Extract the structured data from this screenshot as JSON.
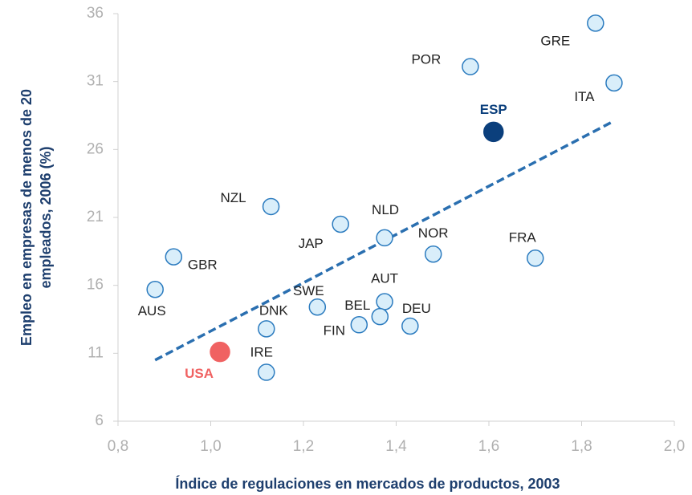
{
  "chart_data": {
    "type": "scatter",
    "x_label": "Índice de regulaciones en mercados de productos, 2003",
    "y_label": [
      "Empleo en empresas de menos de 20",
      "empleados, 2006 (%)"
    ],
    "xlim": [
      0.8,
      2.0
    ],
    "ylim": [
      6,
      36
    ],
    "xticks": [
      {
        "value": 0.8,
        "label": "0,8"
      },
      {
        "value": 1.0,
        "label": "1,0"
      },
      {
        "value": 1.2,
        "label": "1,2"
      },
      {
        "value": 1.4,
        "label": "1,4"
      },
      {
        "value": 1.6,
        "label": "1,6"
      },
      {
        "value": 1.8,
        "label": "1,8"
      },
      {
        "value": 2.0,
        "label": "2,0"
      }
    ],
    "yticks": [
      6,
      11,
      16,
      21,
      26,
      31,
      36
    ],
    "color": "#d9eefa",
    "series": [
      {
        "labels": [
          "GRE",
          "ITA",
          "POR",
          "ESP",
          "NZL",
          "JAP",
          "NLD",
          "NOR",
          "FRA",
          "GBR",
          "AUS",
          "SWE",
          "AUT",
          "BEL",
          "FIN",
          "DEU",
          "DNK",
          "USA",
          "IRE"
        ],
        "x": [
          1.83,
          1.87,
          1.56,
          1.61,
          1.13,
          1.28,
          1.375,
          1.48,
          1.7,
          0.92,
          0.88,
          1.23,
          1.375,
          1.365,
          1.32,
          1.43,
          1.12,
          1.02,
          1.12
        ],
        "values": [
          35.3,
          30.9,
          32.1,
          27.3,
          21.8,
          20.5,
          19.5,
          18.3,
          18.0,
          18.1,
          15.7,
          14.4,
          14.8,
          13.7,
          13.1,
          13.0,
          12.8,
          11.1,
          9.6
        ],
        "colors": [
          "#d9eefa",
          "#d9eefa",
          "#d9eefa",
          "#0b3f7c",
          "#d9eefa",
          "#d9eefa",
          "#d9eefa",
          "#d9eefa",
          "#d9eefa",
          "#d9eefa",
          "#d9eefa",
          "#d9eefa",
          "#d9eefa",
          "#d9eefa",
          "#d9eefa",
          "#d9eefa",
          "#d9eefa",
          "#f06262",
          "#d9eefa"
        ]
      }
    ],
    "trendline": {
      "color": "#2a6fb0",
      "x": [
        0.88,
        1.87
      ],
      "values": [
        10.5,
        28.1
      ]
    }
  }
}
